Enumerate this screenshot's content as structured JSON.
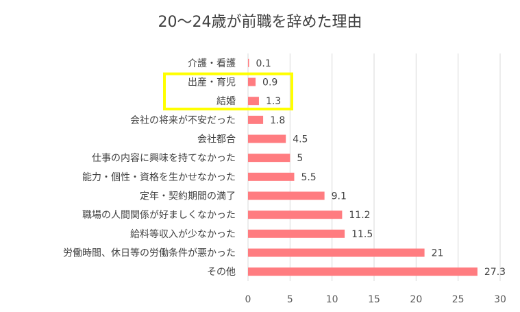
{
  "chart_data": {
    "type": "bar",
    "orientation": "horizontal",
    "title": "20〜24歳が前職を辞めた理由",
    "categories": [
      "介護・看護",
      "出産・育児",
      "結婚",
      "会社の将来が不安だった",
      "会社都合",
      "仕事の内容に興味を持てなかった",
      "能力・個性・資格を生かせなかった",
      "定年・契約期間の満了",
      "職場の人間関係が好ましくなかった",
      "給料等収入が少なかった",
      "労働時間、休日等の労働条件が悪かった",
      "その他"
    ],
    "values": [
      0.1,
      0.9,
      1.3,
      1.8,
      4.5,
      5,
      5.5,
      9.1,
      11.2,
      11.5,
      21,
      27.3
    ],
    "value_labels": [
      "0.1",
      "0.9",
      "1.3",
      "1.8",
      "4.5",
      "5",
      "5.5",
      "9.1",
      "11.2",
      "11.5",
      "21",
      "27.3"
    ],
    "xlim": [
      0,
      30
    ],
    "ticks": [
      "0",
      "5",
      "10",
      "15",
      "20",
      "25",
      "30"
    ],
    "grid": "vertical",
    "legend": "none",
    "bar_color": "#ff7c80",
    "highlight": {
      "categories": [
        "出産・育児",
        "結婚"
      ],
      "color": "#ffff00"
    }
  }
}
